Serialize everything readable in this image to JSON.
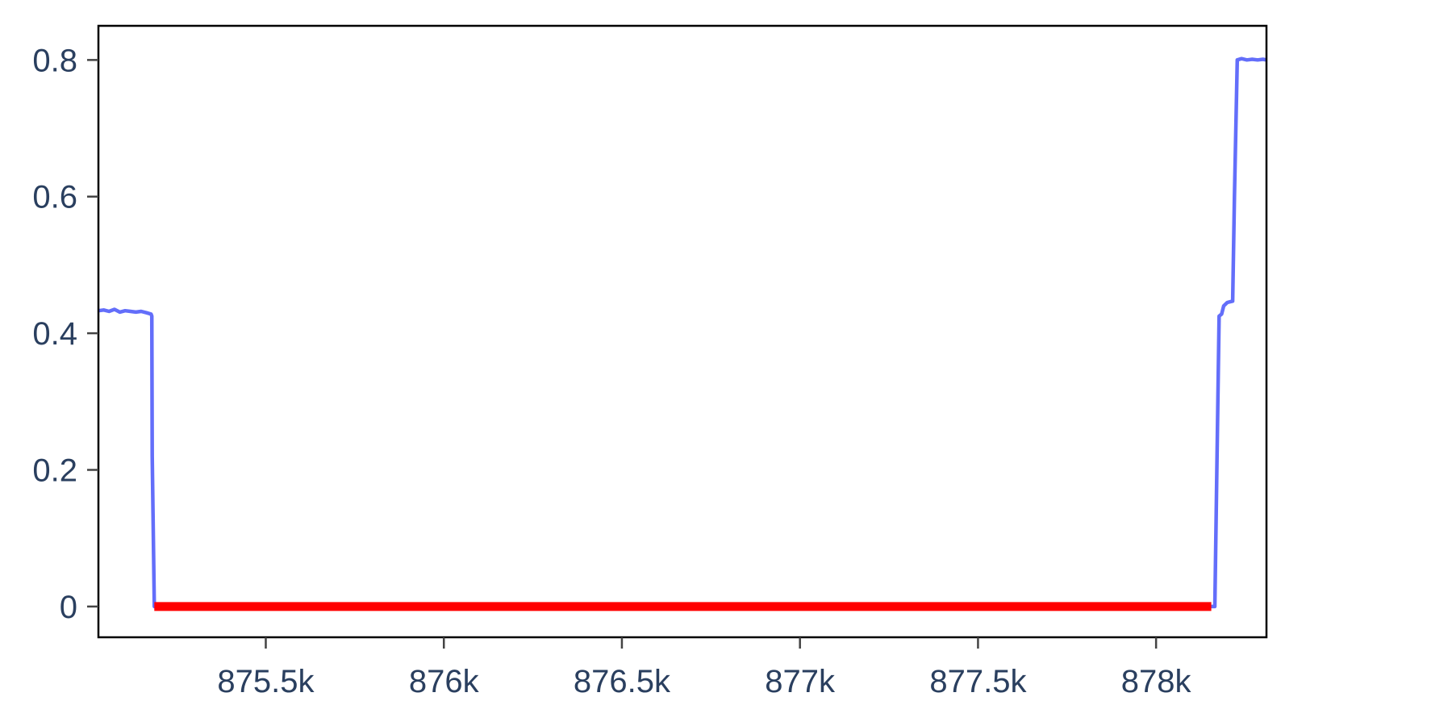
{
  "chart_data": {
    "type": "line",
    "title": "",
    "xlabel": "",
    "ylabel": "",
    "xlim": [
      875030,
      878310
    ],
    "ylim": [
      -0.045,
      0.85
    ],
    "grid": false,
    "legend": "none",
    "x_ticks": [
      {
        "value": 875500,
        "label": "875.5k"
      },
      {
        "value": 876000,
        "label": "876k"
      },
      {
        "value": 876500,
        "label": "876.5k"
      },
      {
        "value": 877000,
        "label": "877k"
      },
      {
        "value": 877500,
        "label": "877.5k"
      },
      {
        "value": 878000,
        "label": "878k"
      }
    ],
    "y_ticks": [
      {
        "value": 0,
        "label": "0"
      },
      {
        "value": 0.2,
        "label": "0.2"
      },
      {
        "value": 0.4,
        "label": "0.4"
      },
      {
        "value": 0.6,
        "label": "0.6"
      },
      {
        "value": 0.8,
        "label": "0.8"
      }
    ],
    "series": [
      {
        "color": "#636efa",
        "points": [
          [
            875030,
            0.433
          ],
          [
            875045,
            0.434
          ],
          [
            875060,
            0.432
          ],
          [
            875075,
            0.435
          ],
          [
            875090,
            0.431
          ],
          [
            875105,
            0.433
          ],
          [
            875120,
            0.432
          ],
          [
            875135,
            0.431
          ],
          [
            875150,
            0.432
          ],
          [
            875165,
            0.43
          ],
          [
            875178,
            0.428
          ],
          [
            875180,
            0.425
          ],
          [
            875181,
            0.22
          ],
          [
            875187,
            0.0
          ],
          [
            875200,
            0.0
          ],
          [
            876000,
            0.0
          ],
          [
            877000,
            0.0
          ],
          [
            878000,
            0.0
          ],
          [
            878160,
            0.0
          ],
          [
            878165,
            0.0
          ],
          [
            878177,
            0.425
          ],
          [
            878184,
            0.428
          ],
          [
            878190,
            0.44
          ],
          [
            878200,
            0.445
          ],
          [
            878215,
            0.447
          ],
          [
            878220,
            0.6
          ],
          [
            878228,
            0.8
          ],
          [
            878240,
            0.802
          ],
          [
            878255,
            0.8
          ],
          [
            878270,
            0.801
          ],
          [
            878285,
            0.8
          ],
          [
            878300,
            0.801
          ],
          [
            878310,
            0.8
          ]
        ]
      },
      {
        "color": "#ff0000",
        "points": [
          [
            875187,
            0.0
          ],
          [
            878155,
            0.0
          ]
        ]
      }
    ]
  }
}
